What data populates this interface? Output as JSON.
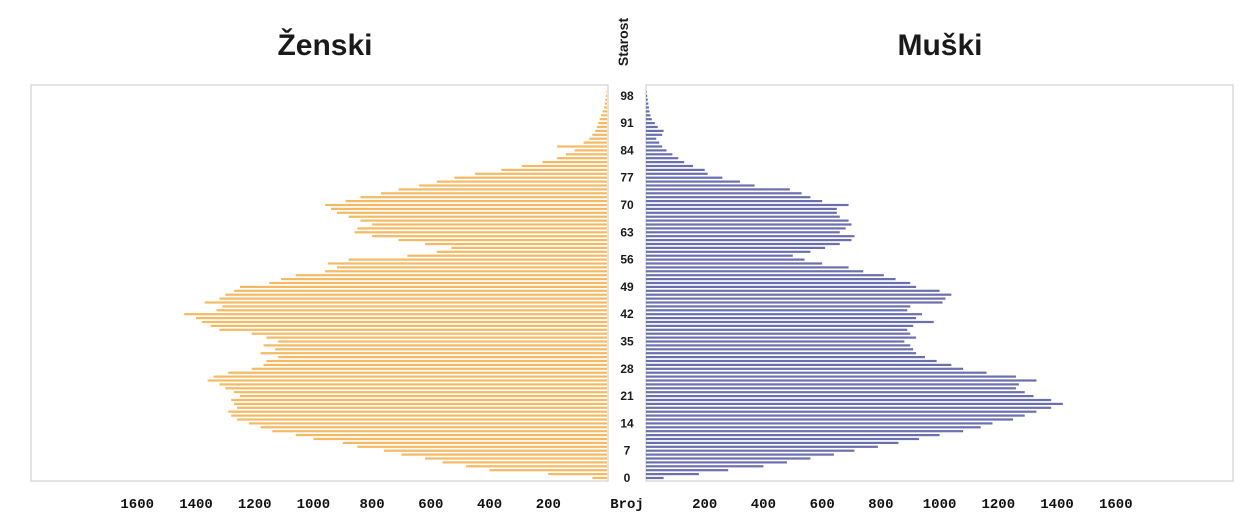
{
  "chart_data": {
    "type": "bar",
    "subtype": "population-pyramid",
    "title_left": "Ženski",
    "title_right": "Muški",
    "center_axis_label": "Starost",
    "x_axis_label": "Broj",
    "x_ticks": [
      200,
      400,
      600,
      800,
      1000,
      1200,
      1400,
      1600
    ],
    "x_range": [
      0,
      1600
    ],
    "age_ticks": [
      0,
      7,
      14,
      21,
      28,
      35,
      42,
      49,
      56,
      63,
      70,
      77,
      84,
      91,
      98
    ],
    "age_range": [
      0,
      99
    ],
    "grid": false,
    "colors": {
      "female": "#f5b964",
      "male": "#6b6fb0",
      "frame": "#c8c8c8"
    },
    "ages": [
      0,
      1,
      2,
      3,
      4,
      5,
      6,
      7,
      8,
      9,
      10,
      11,
      12,
      13,
      14,
      15,
      16,
      17,
      18,
      19,
      20,
      21,
      22,
      23,
      24,
      25,
      26,
      27,
      28,
      29,
      30,
      31,
      32,
      33,
      34,
      35,
      36,
      37,
      38,
      39,
      40,
      41,
      42,
      43,
      44,
      45,
      46,
      47,
      48,
      49,
      50,
      51,
      52,
      53,
      54,
      55,
      56,
      57,
      58,
      59,
      60,
      61,
      62,
      63,
      64,
      65,
      66,
      67,
      68,
      69,
      70,
      71,
      72,
      73,
      74,
      75,
      76,
      77,
      78,
      79,
      80,
      81,
      82,
      83,
      84,
      85,
      86,
      87,
      88,
      89,
      90,
      91,
      92,
      93,
      94,
      95,
      96,
      97,
      98,
      99
    ],
    "series": [
      {
        "name": "Ženski",
        "values": [
          50,
          200,
          400,
          480,
          560,
          620,
          700,
          760,
          850,
          900,
          1000,
          1060,
          1140,
          1180,
          1220,
          1260,
          1280,
          1290,
          1260,
          1270,
          1280,
          1250,
          1270,
          1300,
          1320,
          1360,
          1340,
          1290,
          1210,
          1170,
          1160,
          1120,
          1180,
          1130,
          1170,
          1120,
          1160,
          1210,
          1320,
          1350,
          1380,
          1400,
          1440,
          1330,
          1310,
          1370,
          1320,
          1300,
          1270,
          1250,
          1150,
          1110,
          1060,
          960,
          920,
          950,
          880,
          680,
          580,
          530,
          620,
          710,
          800,
          860,
          850,
          800,
          840,
          880,
          920,
          940,
          960,
          890,
          840,
          770,
          710,
          640,
          580,
          520,
          450,
          360,
          290,
          220,
          170,
          140,
          110,
          170,
          80,
          60,
          50,
          40,
          35,
          30,
          25,
          20,
          15,
          10,
          8,
          6,
          4,
          2
        ]
      },
      {
        "name": "Muški",
        "values": [
          60,
          180,
          280,
          400,
          480,
          560,
          640,
          710,
          790,
          860,
          930,
          1000,
          1080,
          1140,
          1180,
          1250,
          1290,
          1330,
          1380,
          1420,
          1380,
          1320,
          1290,
          1260,
          1270,
          1330,
          1260,
          1160,
          1080,
          1040,
          990,
          950,
          920,
          910,
          900,
          880,
          920,
          900,
          890,
          910,
          980,
          920,
          940,
          890,
          900,
          1010,
          1020,
          1040,
          1000,
          920,
          900,
          850,
          810,
          740,
          690,
          600,
          540,
          500,
          560,
          610,
          660,
          700,
          710,
          660,
          680,
          700,
          690,
          660,
          650,
          650,
          690,
          600,
          560,
          530,
          490,
          370,
          320,
          260,
          210,
          200,
          160,
          130,
          110,
          90,
          70,
          55,
          45,
          35,
          55,
          60,
          40,
          30,
          20,
          15,
          12,
          10,
          8,
          6,
          4,
          2
        ]
      }
    ]
  }
}
